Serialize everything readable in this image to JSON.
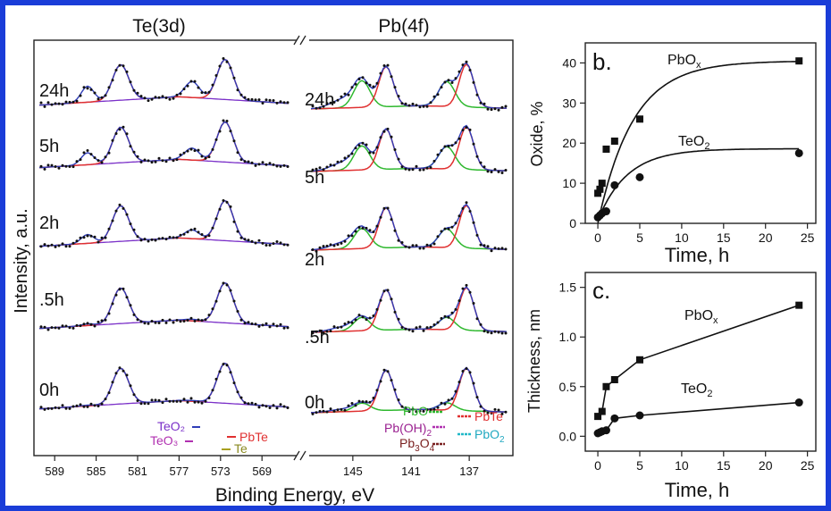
{
  "colors": {
    "border": "#1a3dd8",
    "envelope": "#2f3db8",
    "pbte": "#e03030",
    "oxide": "#2eb82e",
    "background": "#7a2fc8",
    "dots": "#111111"
  },
  "chart_data": [
    {
      "type": "line",
      "panel": "xps-spectra",
      "titles": [
        "Te(3d)",
        "Pb(4f)"
      ],
      "ylabel": "Intensity, a.u.",
      "xlabel": "Binding Energy, eV",
      "x_axis_left": {
        "ticks": [
          "589",
          "585",
          "581",
          "577",
          "573",
          "569"
        ],
        "xlim": [
          591,
          566
        ],
        "reversed": true
      },
      "x_axis_right": {
        "ticks": [
          "145",
          "141",
          "137"
        ],
        "xlim": [
          148,
          134
        ],
        "reversed": true
      },
      "traces": [
        "24h",
        "5h",
        "2h",
        ".5h",
        "0h"
      ],
      "legend_left": [
        "TeO₂",
        "TeO₃",
        "PbTe",
        "Te"
      ],
      "legend_right": [
        "PbO",
        "Pb(OH)₂",
        "Pb₃O₄",
        "PbTe",
        "PbO₂"
      ]
    },
    {
      "type": "scatter",
      "panel": "b.",
      "xlabel": "Time, h",
      "ylabel": "Oxide, %",
      "xlim": [
        -1.5,
        26
      ],
      "ylim": [
        0,
        45
      ],
      "x_ticks": [
        0,
        5,
        10,
        15,
        20,
        25
      ],
      "y_ticks": [
        0,
        10,
        20,
        30,
        40
      ],
      "series": [
        {
          "name": "PbOx",
          "marker": "square",
          "x": [
            0,
            0.25,
            0.5,
            1,
            2,
            5,
            24
          ],
          "y": [
            7.5,
            8.5,
            10,
            18.5,
            20.5,
            26,
            40.5
          ]
        },
        {
          "name": "TeO2",
          "marker": "circle",
          "x": [
            0,
            0.25,
            0.5,
            1,
            2,
            5,
            24
          ],
          "y": [
            1.5,
            2,
            2.5,
            3,
            9.5,
            11.5,
            17.5
          ]
        }
      ],
      "series_labels": [
        {
          "main": "PbO",
          "sub": "x"
        },
        {
          "main": "TeO",
          "sub": "2"
        }
      ]
    },
    {
      "type": "scatter",
      "panel": "c.",
      "xlabel": "Time, h",
      "ylabel": "Thickness, nm",
      "xlim": [
        -1.5,
        26
      ],
      "ylim": [
        -0.15,
        1.65
      ],
      "x_ticks": [
        0,
        5,
        10,
        15,
        20,
        25
      ],
      "y_ticks": [
        "0.0",
        "0.5",
        "1.0",
        "1.5"
      ],
      "series": [
        {
          "name": "PbOx",
          "marker": "square",
          "x": [
            0,
            0.5,
            1,
            2,
            5,
            24
          ],
          "y": [
            0.2,
            0.25,
            0.5,
            0.57,
            0.77,
            1.32
          ]
        },
        {
          "name": "TeO2",
          "marker": "circle",
          "x": [
            0,
            0.25,
            0.5,
            1,
            2,
            5,
            24
          ],
          "y": [
            0.03,
            0.04,
            0.05,
            0.06,
            0.18,
            0.21,
            0.34
          ]
        }
      ],
      "series_labels": [
        {
          "main": "PbO",
          "sub": "x"
        },
        {
          "main": "TeO",
          "sub": "2"
        }
      ]
    }
  ]
}
